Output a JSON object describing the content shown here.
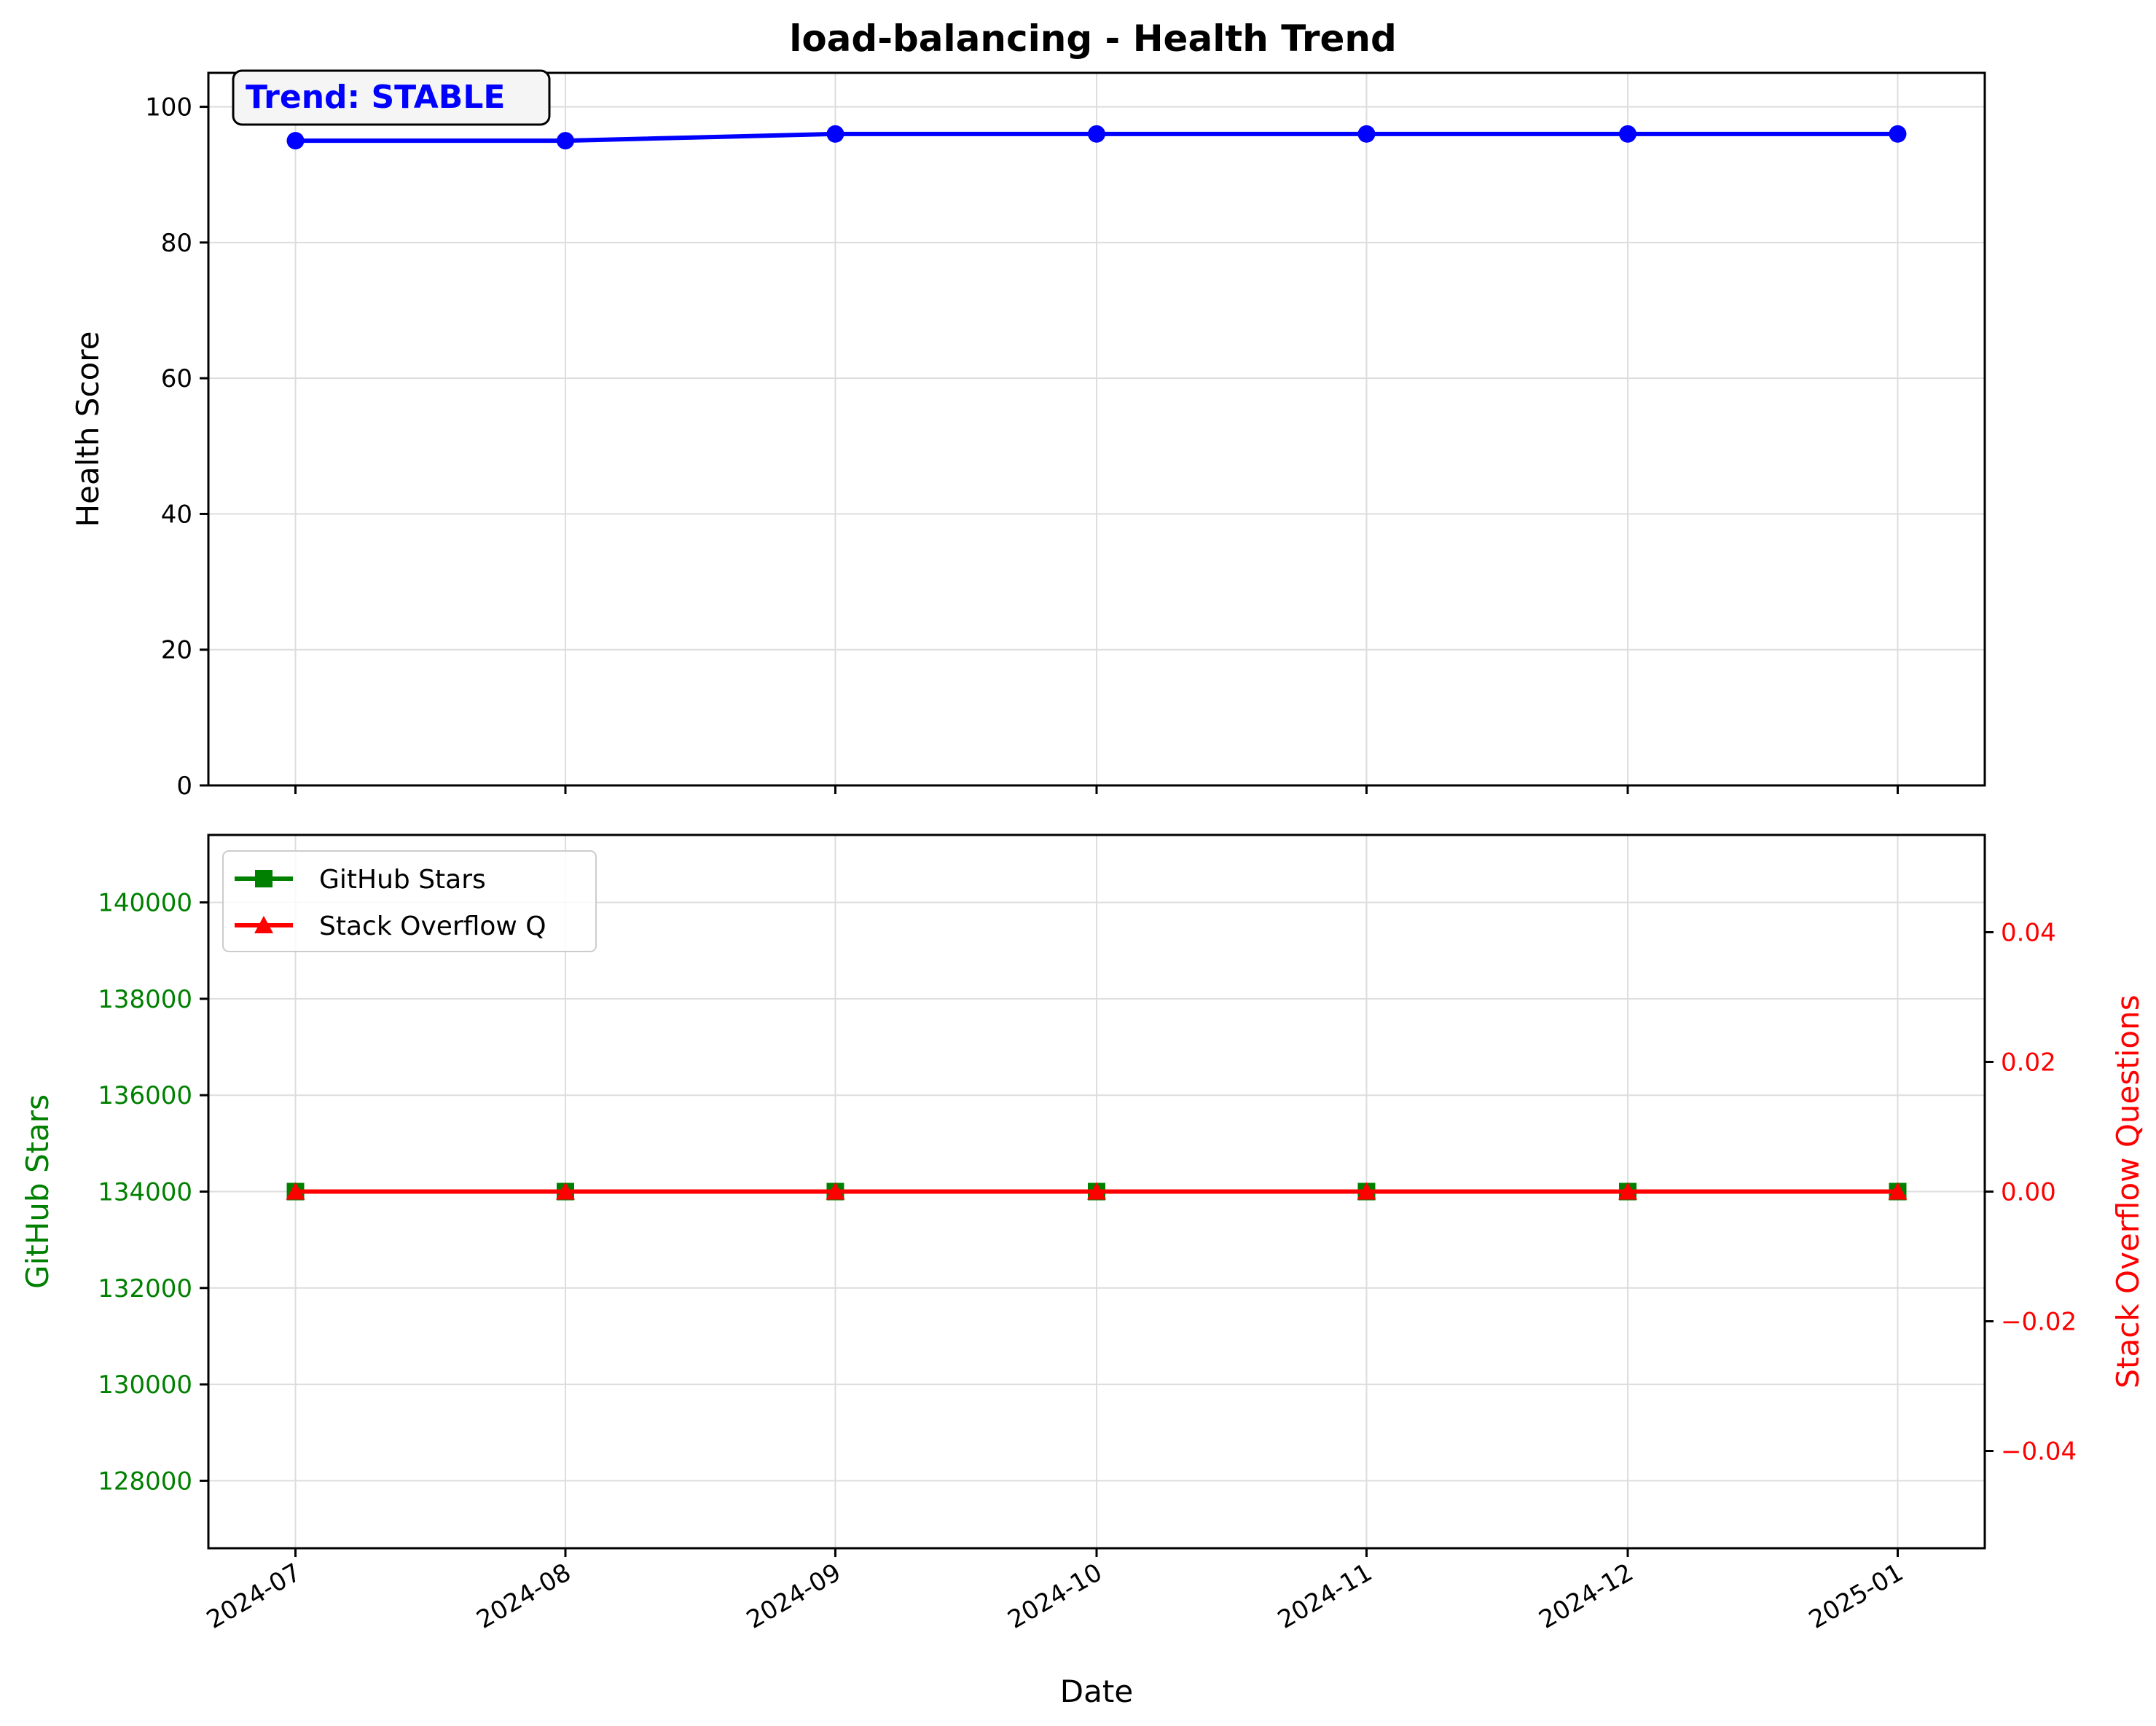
{
  "chart_data": {
    "type": "line",
    "title": "load-balancing - Health Trend",
    "xlabel": "Date",
    "x": [
      "2024-07",
      "2024-08",
      "2024-09",
      "2024-10",
      "2024-11",
      "2024-12",
      "2025-01"
    ],
    "x_dates": [
      "2024-07-01",
      "2024-08-01",
      "2024-09-01",
      "2024-10-01",
      "2024-11-01",
      "2024-12-01",
      "2025-01-01"
    ],
    "x_domain": [
      "2024-06-21",
      "2025-01-11"
    ],
    "grid": true,
    "top_panel": {
      "ylabel": "Health Score",
      "ylim": [
        0,
        105
      ],
      "yticks": [
        "0",
        "20",
        "40",
        "60",
        "80",
        "100"
      ],
      "annotation": "Trend: STABLE",
      "annotation_color": "#0000ff",
      "series": [
        {
          "values": [
            95,
            95,
            96,
            96,
            96,
            96,
            96
          ],
          "color": "#0000ff",
          "marker": "circle"
        }
      ]
    },
    "bottom_panel": {
      "ylabel_left": "GitHub Stars",
      "ylabel_right": "Stack Overflow Questions",
      "ylim_left": [
        126600,
        141400
      ],
      "ylim_right": [
        -0.055,
        0.055
      ],
      "yticks_left": [
        "128000",
        "130000",
        "132000",
        "134000",
        "136000",
        "138000",
        "140000"
      ],
      "yticks_right": [
        "−0.04",
        "−0.02",
        "0.00",
        "0.02",
        "0.04"
      ],
      "left_color": "#008000",
      "right_color": "#ff0000",
      "legend_position": "upper left",
      "series": [
        {
          "name": "GitHub Stars",
          "axis": "left",
          "values": [
            134000,
            134000,
            134000,
            134000,
            134000,
            134000,
            134000
          ],
          "color": "#008000",
          "marker": "square"
        },
        {
          "name": "Stack Overflow Q",
          "axis": "right",
          "values": [
            0,
            0,
            0,
            0,
            0,
            0,
            0
          ],
          "color": "#ff0000",
          "marker": "triangle"
        }
      ]
    }
  }
}
